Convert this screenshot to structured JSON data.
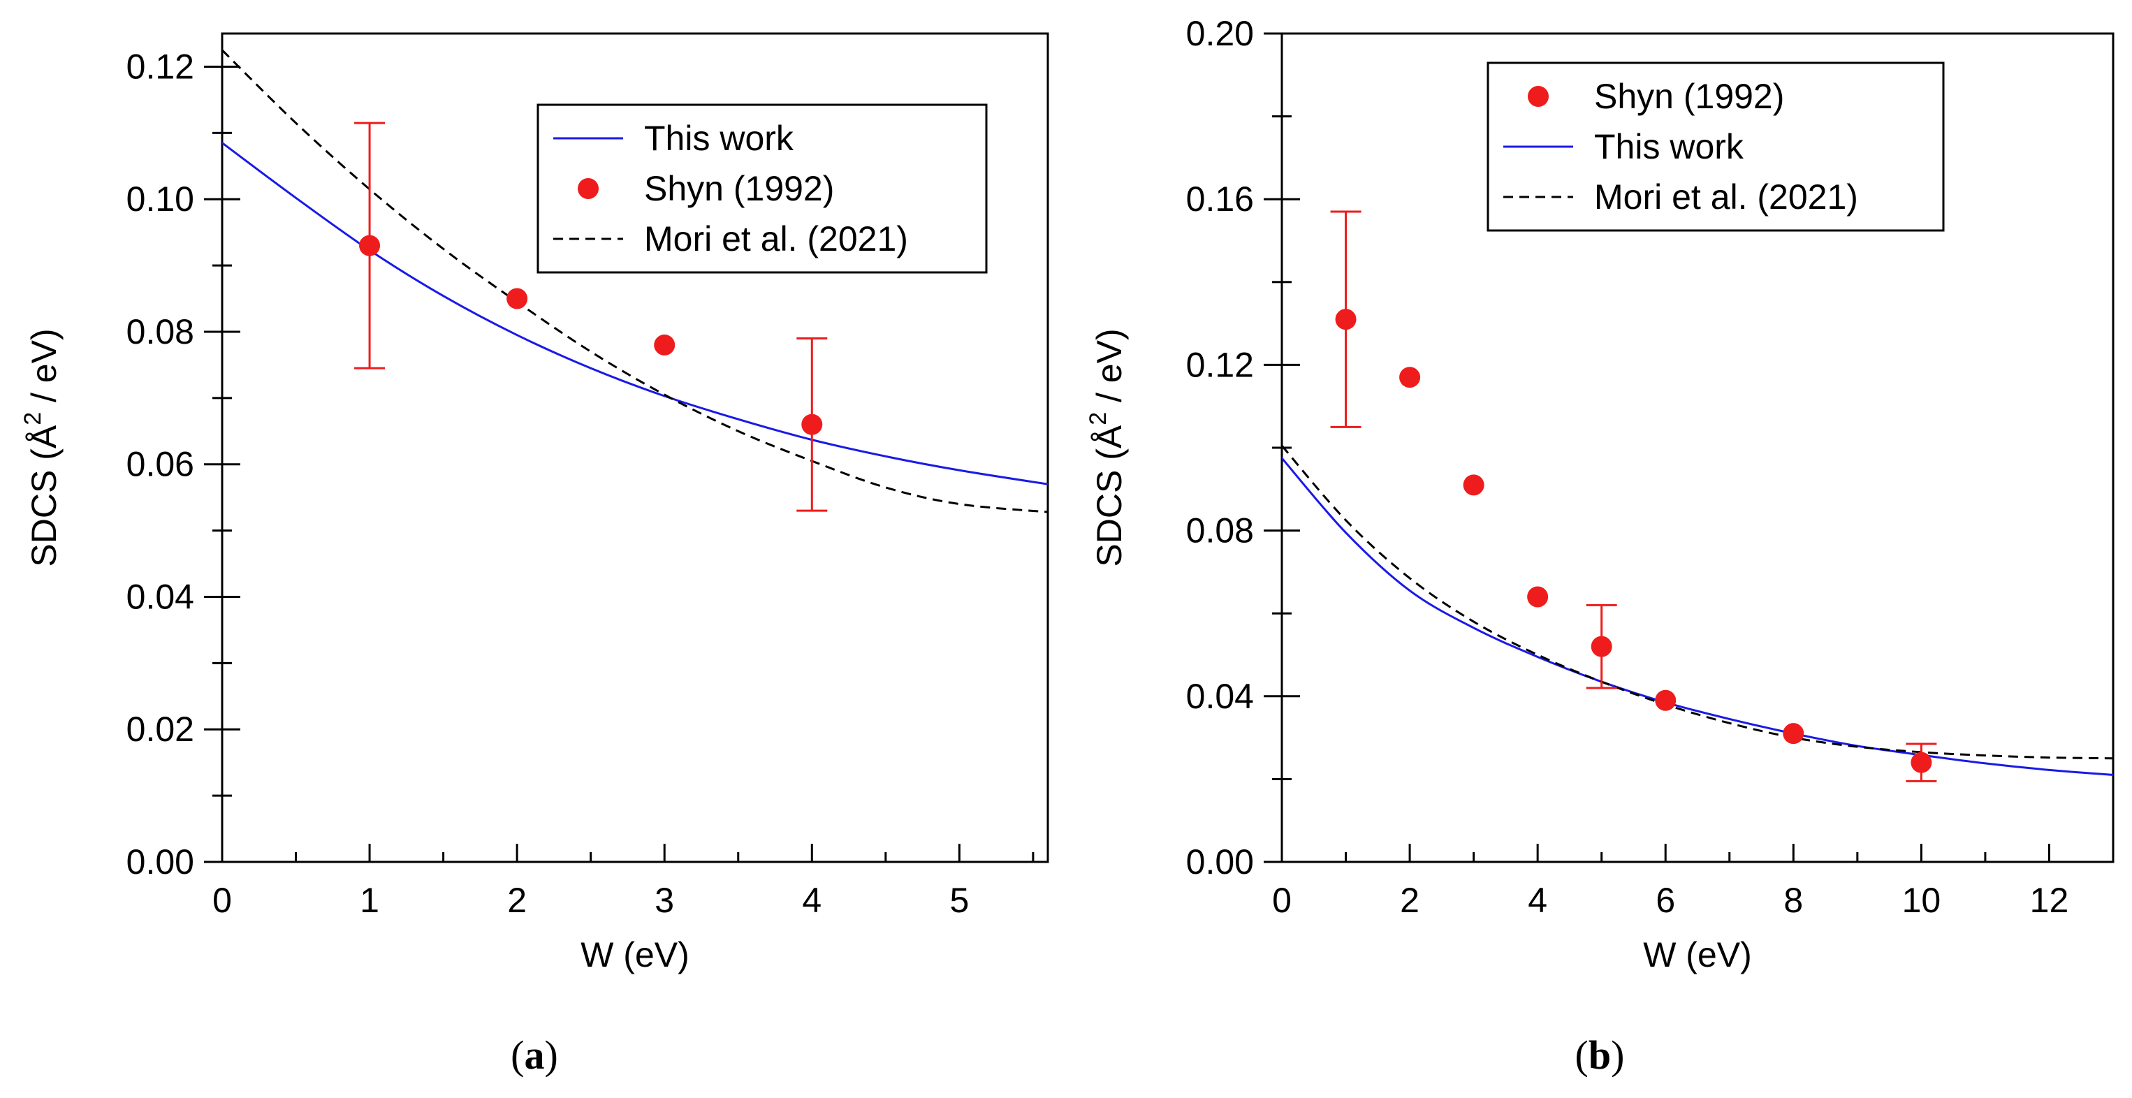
{
  "chart_data": [
    {
      "type": "scatter",
      "panel": "(a)",
      "panel_letter": "a",
      "xlabel": "W (eV)",
      "ylabel_main": "SDCS (Å",
      "ylabel_sup": "2",
      "ylabel_end": " / eV)",
      "xlim": [
        0,
        5.6
      ],
      "ylim": [
        0,
        0.125
      ],
      "xticks": [
        0,
        1,
        2,
        3,
        4,
        5
      ],
      "xtick_labels": [
        "0",
        "1",
        "2",
        "3",
        "4",
        "5"
      ],
      "yticks": [
        0,
        0.02,
        0.04,
        0.06,
        0.08,
        0.1,
        0.12
      ],
      "ytick_labels": [
        "0.00",
        "0.02",
        "0.04",
        "0.06",
        "0.08",
        "0.10",
        "0.12"
      ],
      "legend_position": "top-right",
      "legend": [
        "This work",
        "Shyn (1992)",
        "Mori et al. (2021)"
      ],
      "series": [
        {
          "name": "This work",
          "kind": "line",
          "style": "solid",
          "color": "#1a1ae6",
          "x": [
            0,
            0.5,
            1,
            1.5,
            2,
            2.5,
            3,
            3.5,
            4,
            4.5,
            5,
            5.6
          ],
          "y": [
            0.1085,
            0.1002,
            0.0923,
            0.0854,
            0.0795,
            0.0745,
            0.0703,
            0.0668,
            0.0637,
            0.0612,
            0.0591,
            0.057
          ]
        },
        {
          "name": "Shyn (1992)",
          "kind": "scatter",
          "color": "#ee1c1c",
          "x": [
            1,
            2,
            3,
            4
          ],
          "y": [
            0.093,
            0.085,
            0.078,
            0.066
          ],
          "err_low": [
            0.0745,
            null,
            null,
            0.053
          ],
          "err_high": [
            0.1115,
            null,
            null,
            0.079
          ]
        },
        {
          "name": "Mori et al. (2021)",
          "kind": "line",
          "style": "dashed",
          "color": "#000000",
          "x": [
            0,
            0.5,
            1,
            1.5,
            2,
            2.5,
            3,
            3.5,
            4,
            4.5,
            5,
            5.6
          ],
          "y": [
            0.1225,
            0.1115,
            0.1015,
            0.0925,
            0.0845,
            0.077,
            0.0705,
            0.065,
            0.0605,
            0.0565,
            0.054,
            0.0528
          ]
        }
      ]
    },
    {
      "type": "scatter",
      "panel": "(b)",
      "panel_letter": "b",
      "xlabel": "W (eV)",
      "ylabel_main": "SDCS (Å",
      "ylabel_sup": "2",
      "ylabel_end": " / eV)",
      "xlim": [
        0,
        13
      ],
      "ylim": [
        0,
        0.2
      ],
      "xticks": [
        0,
        2,
        4,
        6,
        8,
        10,
        12
      ],
      "xtick_labels": [
        "0",
        "2",
        "4",
        "6",
        "8",
        "10",
        "12"
      ],
      "yticks": [
        0,
        0.04,
        0.08,
        0.12,
        0.16,
        0.2
      ],
      "ytick_labels": [
        "0.00",
        "0.04",
        "0.08",
        "0.12",
        "0.16",
        "0.20"
      ],
      "legend_position": "top-right",
      "legend": [
        "Shyn (1992)",
        "This work",
        "Mori et al. (2021)"
      ],
      "series": [
        {
          "name": "Shyn (1992)",
          "kind": "scatter",
          "color": "#ee1c1c",
          "x": [
            1,
            2,
            3,
            4,
            5,
            6,
            8,
            10
          ],
          "y": [
            0.131,
            0.117,
            0.091,
            0.064,
            0.052,
            0.039,
            0.031,
            0.024
          ],
          "err_low": [
            0.105,
            null,
            null,
            null,
            0.042,
            null,
            null,
            0.0195
          ],
          "err_high": [
            0.157,
            null,
            null,
            null,
            0.062,
            null,
            null,
            0.0285
          ]
        },
        {
          "name": "This work",
          "kind": "line",
          "style": "solid",
          "color": "#1a1ae6",
          "x": [
            0,
            1,
            2,
            3,
            4,
            5,
            6,
            7,
            8,
            9,
            10,
            11,
            12,
            13
          ],
          "y": [
            0.0975,
            0.0795,
            0.0655,
            0.0565,
            0.0495,
            0.0435,
            0.0385,
            0.0345,
            0.031,
            0.028,
            0.0258,
            0.0238,
            0.0222,
            0.021
          ]
        },
        {
          "name": "Mori et al. (2021)",
          "kind": "line",
          "style": "dashed",
          "color": "#000000",
          "x": [
            0,
            1,
            2,
            3,
            4,
            5,
            6,
            7,
            8,
            9,
            10,
            11,
            12,
            13
          ],
          "y": [
            0.1005,
            0.0825,
            0.0685,
            0.058,
            0.05,
            0.0435,
            0.038,
            0.0335,
            0.03,
            0.0278,
            0.0265,
            0.0257,
            0.0252,
            0.025
          ]
        }
      ]
    }
  ]
}
